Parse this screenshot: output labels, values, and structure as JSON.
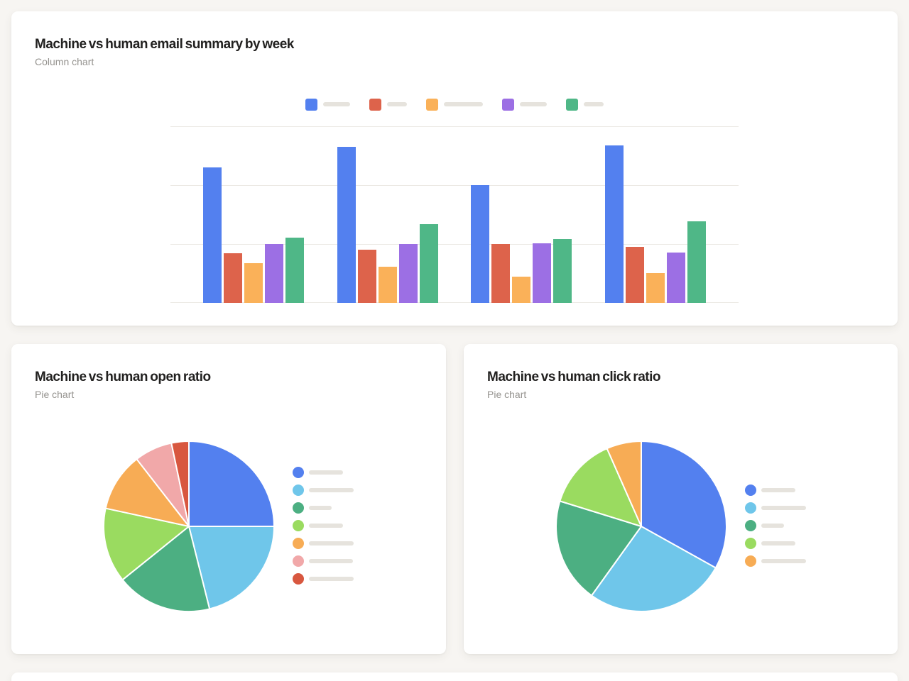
{
  "page": {
    "background": "#F7F5F2"
  },
  "cards": {
    "weekly": {
      "title": "Machine vs human email summary by week",
      "subtitle": "Column chart"
    },
    "open_ratio": {
      "title": "Machine vs human open ratio",
      "subtitle": "Pie chart"
    },
    "click_ratio": {
      "title": "Machine vs human click ratio",
      "subtitle": "Pie chart"
    }
  },
  "legend_placeholder_color": "#E6E3DD",
  "chart_data": [
    {
      "id": "weekly_columns",
      "type": "bar",
      "title": "Machine vs human email summary by week",
      "subtitle": "Column chart",
      "categories": [
        "",
        "",
        "",
        ""
      ],
      "x_axis_labels_visible": false,
      "y_axis_labels_visible": false,
      "ylim": [
        0,
        300
      ],
      "gridline_values": [
        0,
        100,
        200,
        300
      ],
      "grid": true,
      "legend_position": "top-center",
      "legend_labels_redacted": true,
      "series": [
        {
          "name": "series-blue",
          "color": "#5380EF",
          "values": [
            230,
            265,
            200,
            267
          ],
          "legend_pill_width": 38
        },
        {
          "name": "series-red",
          "color": "#DD634B",
          "values": [
            84,
            90,
            100,
            95
          ],
          "legend_pill_width": 28
        },
        {
          "name": "series-orange",
          "color": "#FAB159",
          "values": [
            67,
            61,
            45,
            51
          ],
          "legend_pill_width": 55
        },
        {
          "name": "series-purple",
          "color": "#9C6FE4",
          "values": [
            100,
            100,
            101,
            85
          ],
          "legend_pill_width": 38
        },
        {
          "name": "series-green",
          "color": "#4FB787",
          "values": [
            111,
            134,
            109,
            139
          ],
          "legend_pill_width": 28
        }
      ]
    },
    {
      "id": "open_ratio_pie",
      "type": "pie",
      "title": "Machine vs human open ratio",
      "subtitle": "Pie chart",
      "start_angle_deg": 0,
      "direction": "clockwise",
      "legend_position": "right",
      "legend_labels_redacted": true,
      "slices": [
        {
          "name": "slice-blue",
          "color": "#5380EF",
          "percent": 25.0,
          "legend_pill_width": 48
        },
        {
          "name": "slice-sky",
          "color": "#6FC6EA",
          "percent": 21.1,
          "legend_pill_width": 63
        },
        {
          "name": "slice-green",
          "color": "#4CAF82",
          "percent": 18.1,
          "legend_pill_width": 32
        },
        {
          "name": "slice-lime",
          "color": "#9ADB60",
          "percent": 14.2,
          "legend_pill_width": 48
        },
        {
          "name": "slice-orange",
          "color": "#F7AC55",
          "percent": 11.1,
          "legend_pill_width": 63
        },
        {
          "name": "slice-pink",
          "color": "#F1A8A9",
          "percent": 7.2,
          "legend_pill_width": 62
        },
        {
          "name": "slice-red",
          "color": "#D8573F",
          "percent": 3.3,
          "legend_pill_width": 63
        }
      ]
    },
    {
      "id": "click_ratio_pie",
      "type": "pie",
      "title": "Machine vs human click ratio",
      "subtitle": "Pie chart",
      "start_angle_deg": 0,
      "direction": "clockwise",
      "legend_position": "right",
      "legend_labels_redacted": true,
      "slices": [
        {
          "name": "slice-blue",
          "color": "#5380EF",
          "percent": 33.1,
          "legend_pill_width": 48
        },
        {
          "name": "slice-sky",
          "color": "#6FC6EA",
          "percent": 26.8,
          "legend_pill_width": 63
        },
        {
          "name": "slice-green",
          "color": "#4CAF82",
          "percent": 19.9,
          "legend_pill_width": 32
        },
        {
          "name": "slice-lime",
          "color": "#9ADB60",
          "percent": 13.6,
          "legend_pill_width": 48
        },
        {
          "name": "slice-orange",
          "color": "#F7AC55",
          "percent": 6.6,
          "legend_pill_width": 63
        }
      ]
    }
  ]
}
